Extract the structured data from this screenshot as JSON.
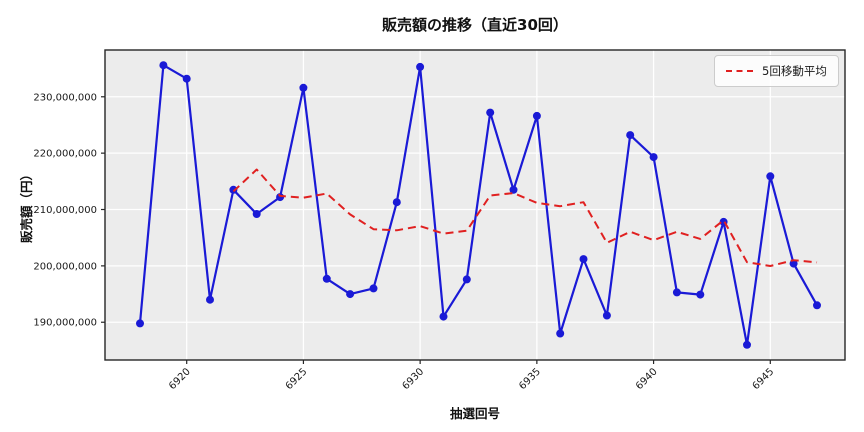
{
  "chart_data": {
    "type": "line",
    "title": "販売額の推移（直近30回）",
    "xlabel": "抽選回号",
    "ylabel": "販売額（円）",
    "x": [
      6918,
      6919,
      6920,
      6921,
      6922,
      6923,
      6924,
      6925,
      6926,
      6927,
      6928,
      6929,
      6930,
      6931,
      6932,
      6933,
      6934,
      6935,
      6936,
      6937,
      6938,
      6939,
      6940,
      6941,
      6942,
      6943,
      6944,
      6945,
      6946,
      6947
    ],
    "series": [
      {
        "id": "sales",
        "color": "#1a1ad6",
        "style": "solid",
        "marker": "circle",
        "values": [
          189800000,
          235600000,
          233200000,
          194000000,
          213500000,
          209200000,
          212200000,
          231600000,
          197700000,
          195000000,
          196000000,
          211300000,
          235300000,
          191000000,
          197600000,
          227200000,
          213500000,
          226600000,
          188000000,
          201200000,
          191200000,
          223200000,
          219300000,
          195300000,
          194900000,
          207800000,
          186000000,
          215900000,
          200400000,
          193000000
        ]
      },
      {
        "id": "moving_average",
        "legend_label": "5回移動平均",
        "color": "#e02020",
        "style": "dashed",
        "marker": "none",
        "values": [
          null,
          null,
          null,
          null,
          213220000,
          217100000,
          212420000,
          212100000,
          212840000,
          209140000,
          206500000,
          206320000,
          207060000,
          205720000,
          206240000,
          212480000,
          212920000,
          211180000,
          210580000,
          211300000,
          204100000,
          206040000,
          204580000,
          206040000,
          204780000,
          208100000,
          200660000,
          199980000,
          201000000,
          200620000
        ]
      }
    ],
    "xlim": [
      6916.5,
      6948.2
    ],
    "ylim": [
      183300000,
      238300000
    ],
    "xticks": [
      6920,
      6925,
      6930,
      6935,
      6940,
      6945
    ],
    "xtick_labels": [
      "6920",
      "6925",
      "6930",
      "6935",
      "6940",
      "6945"
    ],
    "yticks": [
      190000000,
      200000000,
      210000000,
      220000000,
      230000000
    ],
    "ytick_labels": [
      "190,000,000",
      "200,000,000",
      "210,000,000",
      "220,000,000",
      "230,000,000"
    ],
    "grid": true,
    "legend_position": "upper right",
    "plot_background": "#ececec",
    "grid_color": "#ffffff",
    "spine_color": "#262626",
    "tick_label_color": "#1a1a1a"
  }
}
